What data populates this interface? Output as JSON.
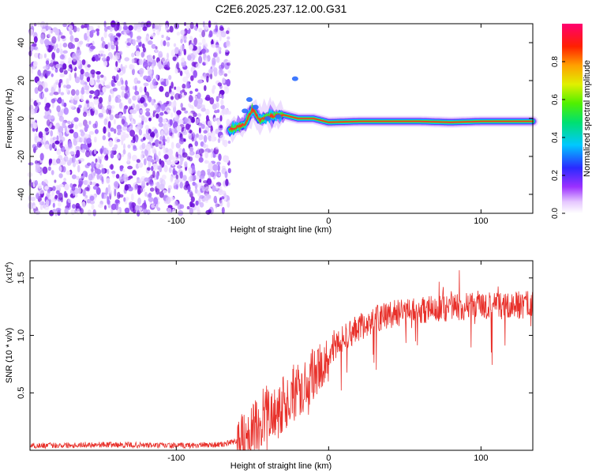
{
  "title": "C2E6.2025.237.12.00.G31",
  "colors": {
    "snr_line": "#e8302a",
    "noise": "#7a1ee0",
    "axis": "#000000"
  },
  "chart_data": [
    {
      "type": "heatmap",
      "name": "spectrogram",
      "xlabel": "Height of straight line (km)",
      "ylabel": "Frequency (Hz)",
      "xlim": [
        -196,
        134
      ],
      "ylim": [
        -50,
        50
      ],
      "x_ticks": [
        -100,
        0,
        100
      ],
      "y_ticks": [
        -40,
        -20,
        0,
        20,
        40
      ],
      "x_tick_labels": [
        "-100",
        "0",
        "100"
      ],
      "y_tick_labels": [
        "-40",
        "-20",
        "0",
        "20",
        "40"
      ],
      "noise_region_x": [
        -196,
        -65
      ],
      "signal_track": {
        "x": [
          -65,
          -55,
          -50,
          -45,
          -40,
          -30,
          -20,
          -10,
          0,
          20,
          40,
          60,
          80,
          100,
          120,
          134
        ],
        "freq": [
          -6,
          -3,
          5,
          -1,
          1,
          2,
          0,
          0,
          -2,
          -1.5,
          -1.5,
          -1.5,
          -2,
          -1.5,
          -1.5,
          -1.5
        ]
      },
      "colorbar": {
        "label": "Normalized spectral amplitude",
        "range": [
          0.0,
          1.0
        ],
        "ticks": [
          0.0,
          0.2,
          0.4,
          0.6,
          0.8
        ],
        "tick_labels": [
          "0.0",
          "0.2",
          "0.4",
          "0.6",
          "0.8"
        ]
      }
    },
    {
      "type": "line",
      "name": "snr",
      "xlabel": "Height of straight line (km)",
      "ylabel": "SNR (10 * v/v)",
      "y_multiplier": "(x10",
      "y_multiplier_exp": "4",
      "y_multiplier_close": ")",
      "xlim": [
        -196,
        134
      ],
      "ylim": [
        0,
        1.65
      ],
      "x_ticks": [
        -100,
        0,
        100
      ],
      "y_ticks": [
        0.5,
        1.0,
        1.5
      ],
      "x_tick_labels": [
        "-100",
        "0",
        "100"
      ],
      "y_tick_labels": [
        "0.5",
        "1.0",
        "1.5"
      ],
      "series": [
        {
          "name": "SNR",
          "x": [
            -196,
            -150,
            -100,
            -70,
            -60,
            -50,
            -45,
            -40,
            -35,
            -30,
            -25,
            -20,
            -10,
            0,
            10,
            20,
            30,
            40,
            50,
            60,
            70,
            80,
            90,
            100,
            110,
            120,
            134
          ],
          "values": [
            0.04,
            0.05,
            0.04,
            0.05,
            0.08,
            0.15,
            0.25,
            0.35,
            0.3,
            0.4,
            0.45,
            0.52,
            0.68,
            0.85,
            0.98,
            1.07,
            1.14,
            1.18,
            1.21,
            1.22,
            1.23,
            1.24,
            1.25,
            1.25,
            1.26,
            1.26,
            1.27
          ]
        }
      ]
    }
  ]
}
